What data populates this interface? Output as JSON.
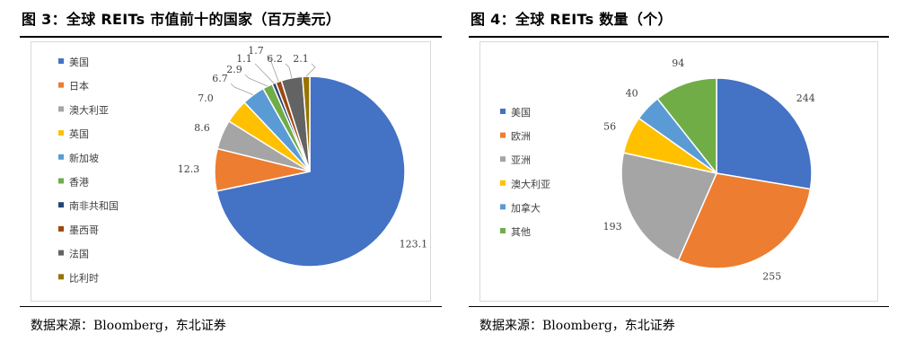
{
  "figures": [
    {
      "title": "图 3：全球 REITs 市值前十的国家（百万美元）",
      "source": "数据来源：Bloomberg，东北证券"
    },
    {
      "title": "图 4：全球 REITs 数量（个）",
      "source": "数据来源：Bloomberg，东北证券"
    }
  ],
  "chart_data": [
    {
      "type": "pie",
      "title": "全球 REITs 市值前十的国家（百万美元）",
      "legend_position": "left",
      "slices": [
        {
          "label": "美国",
          "value": 123.1,
          "value_label": "123.1",
          "color": "#4472C4"
        },
        {
          "label": "日本",
          "value": 12.3,
          "value_label": "12.3",
          "color": "#ED7D31"
        },
        {
          "label": "澳大利亚",
          "value": 8.6,
          "value_label": "8.6",
          "color": "#A5A5A5"
        },
        {
          "label": "英国",
          "value": 7.0,
          "value_label": "7.0",
          "color": "#FFC000"
        },
        {
          "label": "新加坡",
          "value": 6.7,
          "value_label": "6.7",
          "color": "#5B9BD5"
        },
        {
          "label": "香港",
          "value": 2.9,
          "value_label": "2.9",
          "color": "#70AD47"
        },
        {
          "label": "南非共和国",
          "value": 1.1,
          "value_label": "1.1",
          "color": "#264478"
        },
        {
          "label": "墨西哥",
          "value": 1.7,
          "value_label": "1.7",
          "color": "#9E480E"
        },
        {
          "label": "法国",
          "value": 6.2,
          "value_label": "6.2",
          "color": "#636363"
        },
        {
          "label": "比利时",
          "value": 2.1,
          "value_label": "2.1",
          "color": "#997300"
        }
      ]
    },
    {
      "type": "pie",
      "title": "全球 REITs 数量（个）",
      "legend_position": "left",
      "slices": [
        {
          "label": "美国",
          "value": 244,
          "value_label": "244",
          "color": "#4472C4"
        },
        {
          "label": "欧洲",
          "value": 255,
          "value_label": "255",
          "color": "#ED7D31"
        },
        {
          "label": "亚洲",
          "value": 193,
          "value_label": "193",
          "color": "#A5A5A5"
        },
        {
          "label": "澳大利亚",
          "value": 56,
          "value_label": "56",
          "color": "#FFC000"
        },
        {
          "label": "加拿大",
          "value": 40,
          "value_label": "40",
          "color": "#5B9BD5"
        },
        {
          "label": "其他",
          "value": 94,
          "value_label": "94",
          "color": "#70AD47"
        }
      ]
    }
  ]
}
